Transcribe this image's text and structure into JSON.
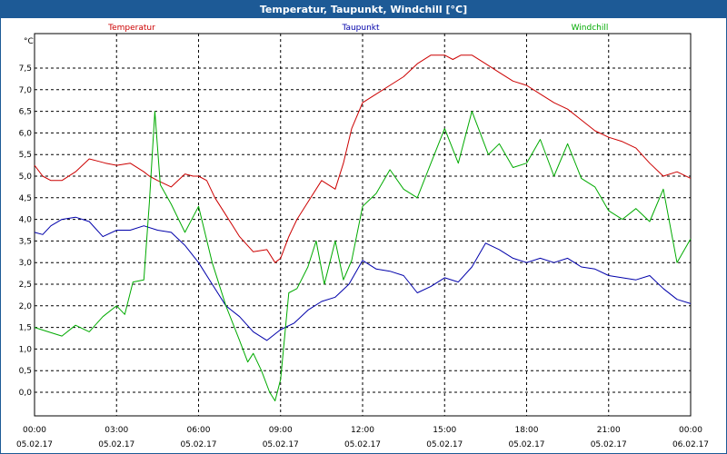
{
  "window": {
    "title": "Temperatur, Taupunkt, Windchill [°C]"
  },
  "chart_data": {
    "type": "line",
    "title": "Temperatur, Taupunkt, Windchill [°C]",
    "ylabel": "°C",
    "ylim": [
      -0.5,
      8.0
    ],
    "xlim_hours": [
      0,
      24
    ],
    "grid": true,
    "y_ticks": [
      0.0,
      0.5,
      1.0,
      1.5,
      2.0,
      2.5,
      3.0,
      3.5,
      4.0,
      4.5,
      5.0,
      5.5,
      6.0,
      6.5,
      7.0,
      7.5
    ],
    "y_tick_labels": [
      "0,0",
      "0,5",
      "1,0",
      "1,5",
      "2,0",
      "2,5",
      "3,0",
      "3,5",
      "4,0",
      "4,5",
      "5,0",
      "5,5",
      "6,0",
      "6,5",
      "7,0",
      "7,5"
    ],
    "x_ticks": [
      {
        "hour": 0,
        "time": "00:00",
        "date": "05.02.17"
      },
      {
        "hour": 3,
        "time": "03:00",
        "date": "05.02.17"
      },
      {
        "hour": 6,
        "time": "06:00",
        "date": "05.02.17"
      },
      {
        "hour": 9,
        "time": "09:00",
        "date": "05.02.17"
      },
      {
        "hour": 12,
        "time": "12:00",
        "date": "05.02.17"
      },
      {
        "hour": 15,
        "time": "15:00",
        "date": "05.02.17"
      },
      {
        "hour": 18,
        "time": "18:00",
        "date": "05.02.17"
      },
      {
        "hour": 21,
        "time": "21:00",
        "date": "05.02.17"
      },
      {
        "hour": 24,
        "time": "00:00",
        "date": "06.02.17"
      }
    ],
    "series": [
      {
        "name": "Temperatur",
        "color": "#cc0000",
        "x": [
          0,
          0.3,
          0.6,
          1,
          1.5,
          2,
          2.3,
          2.6,
          3,
          3.5,
          4,
          4.2,
          4.5,
          5,
          5.5,
          5.8,
          6,
          6.3,
          6.6,
          7,
          7.5,
          8,
          8.5,
          8.8,
          9,
          9.3,
          9.6,
          10,
          10.5,
          11,
          11.3,
          11.6,
          12,
          12.5,
          13,
          13.5,
          14,
          14.5,
          15,
          15.3,
          15.6,
          16,
          16.5,
          17,
          17.5,
          18,
          18.5,
          19,
          19.5,
          20,
          20.5,
          21,
          21.5,
          22,
          22.5,
          23,
          23.5,
          24
        ],
        "values": [
          5.25,
          5.0,
          4.9,
          4.9,
          5.1,
          5.4,
          5.35,
          5.3,
          5.25,
          5.3,
          5.1,
          5.0,
          4.9,
          4.75,
          5.05,
          5.0,
          5.0,
          4.9,
          4.5,
          4.1,
          3.6,
          3.25,
          3.3,
          3.0,
          3.1,
          3.6,
          4.0,
          4.4,
          4.9,
          4.7,
          5.3,
          6.1,
          6.7,
          6.9,
          7.1,
          7.3,
          7.6,
          7.8,
          7.8,
          7.7,
          7.8,
          7.8,
          7.6,
          7.4,
          7.2,
          7.1,
          6.9,
          6.7,
          6.55,
          6.3,
          6.05,
          5.9,
          5.8,
          5.65,
          5.3,
          5.0,
          5.1,
          4.95
        ]
      },
      {
        "name": "Taupunkt",
        "color": "#0000aa",
        "x": [
          0,
          0.3,
          0.6,
          1,
          1.5,
          2,
          2.5,
          3,
          3.5,
          4,
          4.5,
          5,
          5.5,
          6,
          6.5,
          7,
          7.5,
          8,
          8.5,
          9,
          9.5,
          10,
          10.5,
          11,
          11.5,
          12,
          12.5,
          13,
          13.5,
          14,
          14.5,
          15,
          15.5,
          16,
          16.5,
          17,
          17.5,
          18,
          18.5,
          19,
          19.5,
          20,
          20.5,
          21,
          21.5,
          22,
          22.5,
          23,
          23.5,
          24
        ],
        "values": [
          3.7,
          3.65,
          3.85,
          4.0,
          4.05,
          3.95,
          3.6,
          3.75,
          3.75,
          3.85,
          3.75,
          3.7,
          3.4,
          3.0,
          2.5,
          2.0,
          1.75,
          1.4,
          1.2,
          1.45,
          1.6,
          1.9,
          2.1,
          2.2,
          2.5,
          3.05,
          2.85,
          2.8,
          2.7,
          2.3,
          2.45,
          2.65,
          2.55,
          2.9,
          3.45,
          3.3,
          3.1,
          3.0,
          3.1,
          3.0,
          3.1,
          2.9,
          2.85,
          2.7,
          2.65,
          2.6,
          2.7,
          2.4,
          2.15,
          2.05
        ]
      },
      {
        "name": "Windchill",
        "color": "#00aa00",
        "x": [
          0,
          0.5,
          1,
          1.5,
          2,
          2.5,
          3,
          3.3,
          3.6,
          4,
          4.2,
          4.4,
          4.6,
          5,
          5.5,
          6,
          6.5,
          7,
          7.5,
          7.8,
          8,
          8.3,
          8.6,
          8.8,
          9,
          9.3,
          9.6,
          10,
          10.3,
          10.6,
          11,
          11.3,
          11.6,
          12,
          12.5,
          13,
          13.5,
          14,
          14.5,
          15,
          15.5,
          16,
          16.3,
          16.6,
          17,
          17.5,
          18,
          18.5,
          19,
          19.5,
          20,
          20.5,
          21,
          21.5,
          22,
          22.5,
          23,
          23.5,
          24
        ],
        "values": [
          1.5,
          1.4,
          1.3,
          1.55,
          1.4,
          1.75,
          2.0,
          1.8,
          2.55,
          2.6,
          4.4,
          6.5,
          4.8,
          4.35,
          3.7,
          4.3,
          3.0,
          2.0,
          1.2,
          0.7,
          0.9,
          0.5,
          0.0,
          -0.2,
          0.3,
          2.3,
          2.4,
          2.9,
          3.5,
          2.5,
          3.5,
          2.6,
          3.05,
          4.3,
          4.6,
          5.15,
          4.7,
          4.5,
          5.3,
          6.1,
          5.3,
          6.5,
          6.0,
          5.5,
          5.75,
          5.2,
          5.3,
          5.85,
          5.0,
          5.75,
          4.95,
          4.75,
          4.2,
          4.0,
          4.25,
          3.95,
          4.7,
          3.0,
          3.55
        ]
      }
    ]
  }
}
